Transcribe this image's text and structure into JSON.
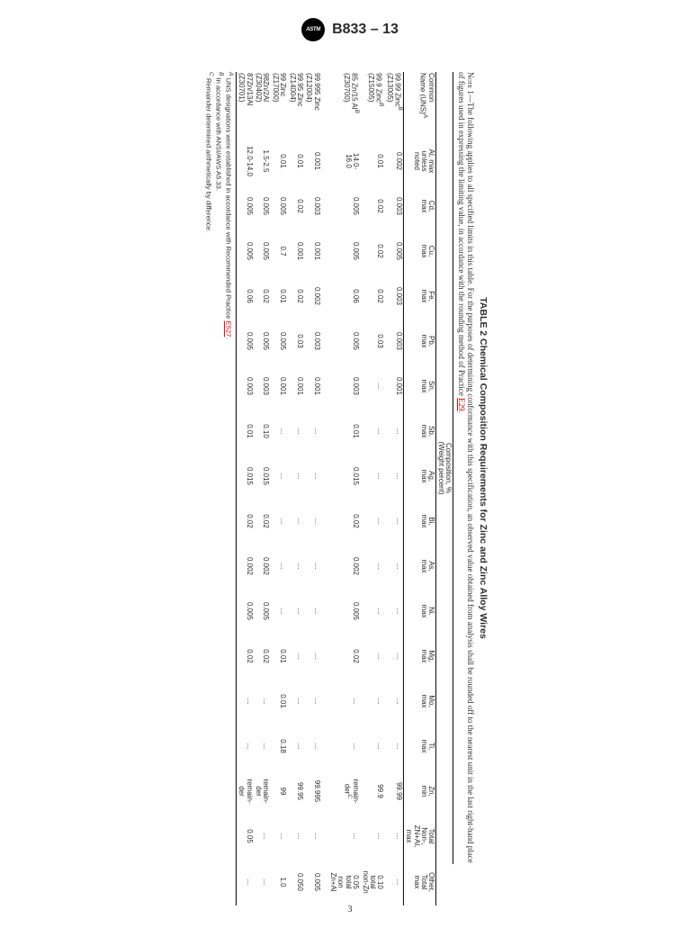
{
  "header": {
    "badge_text": "ASTM",
    "designation": "B833 – 13"
  },
  "page_number": "3",
  "table": {
    "title": "TABLE 2 Chemical Composition Requirements for Zinc and Zinc Alloy Wires",
    "note_label": "Note 1",
    "note_text": "—The following applies to all specified limits in this table. For the purposes of determining conformance with this specification, an observed value obtained from analysis shall be rounded off to the nearest unit in the last right-hand place of figures used in expressing the limiting value, in accordance with the rounding method of Practice ",
    "note_link": "E29",
    "note_tail": ".",
    "composition_heading": "Composition, %",
    "composition_sub": "(Weight percent)",
    "columns": {
      "name": "Common\nName (UNS)",
      "name_sup": "A",
      "al": "Al, max\nunless\nnoted",
      "cd": "Cd,\nmax",
      "cu": "Cu,\nmax",
      "fe": "Fe,\nmax",
      "pb": "Pb,\nmax",
      "sn": "Sn,\nmax",
      "sb": "Sb,\nmax",
      "ag": "Ag,\nmax",
      "bi": "Bi,\nmax",
      "as": "As,\nmax",
      "ni": "Ni,\nmax",
      "mg": "Mg,\nmax",
      "mo": "Mo,\nmax",
      "ti": "Ti,\nmax",
      "zn": "Zn,\nmin",
      "nonznal": "Total\nNon-,\nZN+Al,\nmax",
      "other": "Other,\nTotal\nmax"
    },
    "rows": [
      {
        "name": "99.99 Zinc",
        "name_sup": "B",
        "uns": "(Z13005)",
        "al": "0.002",
        "cd": "0.003",
        "cu": "0.005",
        "fe": "0.003",
        "pb": "0.003",
        "sn": "0.001",
        "sb": "...",
        "ag": "...",
        "bi": "...",
        "as": "...",
        "ni": "...",
        "mg": "...",
        "mo": "...",
        "ti": "...",
        "zn": "99.99",
        "nonznal": "...",
        "other": "..."
      },
      {
        "name": "99.9 Zinc",
        "name_sup": "B",
        "uns": "(Z15005)",
        "al": "0.01",
        "cd": "0.02",
        "cu": "0.02",
        "fe": "0.02",
        "pb": "0.03",
        "sn": "...",
        "sb": "...",
        "ag": "...",
        "bi": "...",
        "as": "...",
        "ni": "...",
        "mg": "...",
        "mo": "...",
        "ti": "...",
        "zn": "99.9",
        "nonznal": "...",
        "other": "0.10\ntotal\nnon-Zn"
      },
      {
        "name": "85 Zn/15 Al",
        "name_sup": "B",
        "uns": "(Z30700)",
        "al": "14.0-\n16.0",
        "cd": "0.005",
        "cu": "0.005",
        "fe": "0.06",
        "pb": "0.005",
        "sn": "0.003",
        "sb": "0.01",
        "ag": "0.015",
        "bi": "0.02",
        "as": "0.002",
        "ni": "0.005",
        "mg": "0.02",
        "mo": "...",
        "ti": "...",
        "zn": "remain-\nder",
        "zn_sup": "C",
        "nonznal": "...",
        "other": "0.05\ntotal\nnon\nZn+Al"
      },
      {
        "name": "99.995 Zinc",
        "uns": "(Z12004)",
        "al": "0.001",
        "cd": "0.003",
        "cu": "0.001",
        "fe": "0.002",
        "pb": "0.003",
        "sn": "0.001",
        "sb": "...",
        "ag": "...",
        "bi": "...",
        "as": "...",
        "ni": "...",
        "mg": "...",
        "mo": "...",
        "ti": "...",
        "zn": "99.995",
        "nonznal": "...",
        "other": "0.005"
      },
      {
        "name": "99.95 Zinc",
        "uns": "(Z14004)",
        "al": "0.01",
        "cd": "0.02",
        "cu": "0.001",
        "fe": "0.02",
        "pb": "0.03",
        "sn": "0.001",
        "sb": "...",
        "ag": "...",
        "bi": "...",
        "as": "...",
        "ni": "...",
        "mg": "...",
        "mo": "...",
        "ti": "...",
        "zn": "99.95",
        "nonznal": "...",
        "other": "0.050"
      },
      {
        "name": "99 Zinc",
        "uns": "(Z17000)",
        "al": "0.01",
        "cd": "0.005",
        "cu": "0.7",
        "fe": "0.01",
        "pb": "0.005",
        "sn": "0.001",
        "sb": "...",
        "ag": "...",
        "bi": "...",
        "as": "...",
        "ni": "...",
        "mg": "0.01",
        "mo": "0.01",
        "ti": "0.18",
        "zn": "99",
        "nonznal": "...",
        "other": "1.0"
      },
      {
        "name": "98Zn/2Al",
        "uns": "(Z30402)",
        "al": "1.5-2.5",
        "cd": "0.005",
        "cu": "0.005",
        "fe": "0.02",
        "pb": "0.005",
        "sn": "0.003",
        "sb": "0.10",
        "ag": "0.015",
        "bi": "0.02",
        "as": "0.002",
        "ni": "0.005",
        "mg": "0.02",
        "mo": "...",
        "ti": "...",
        "zn": "remain-\nder",
        "nonznal": "...",
        "other": "..."
      },
      {
        "name": "87Zn/13Al",
        "uns": "(Z30701)",
        "al": "12.0-14.0",
        "cd": "0.005",
        "cu": "0.005",
        "fe": "0.06",
        "pb": "0.005",
        "sn": "0.003",
        "sb": "0.01",
        "ag": "0.015",
        "bi": "0.02",
        "as": "0.002",
        "ni": "0.005",
        "mg": "0.02",
        "mo": "...",
        "ti": "...",
        "zn": "remain-\nder",
        "nonznal": "0.05",
        "other": "..."
      }
    ],
    "footnotes": {
      "a_pre": "UNS designations were established in accordance with Recommended Practice ",
      "a_link": "E527",
      "a_post": ".",
      "b": "In accordance with ANSI/AWS A5.33.",
      "c": "Remainder determined arithmetically by difference."
    }
  }
}
